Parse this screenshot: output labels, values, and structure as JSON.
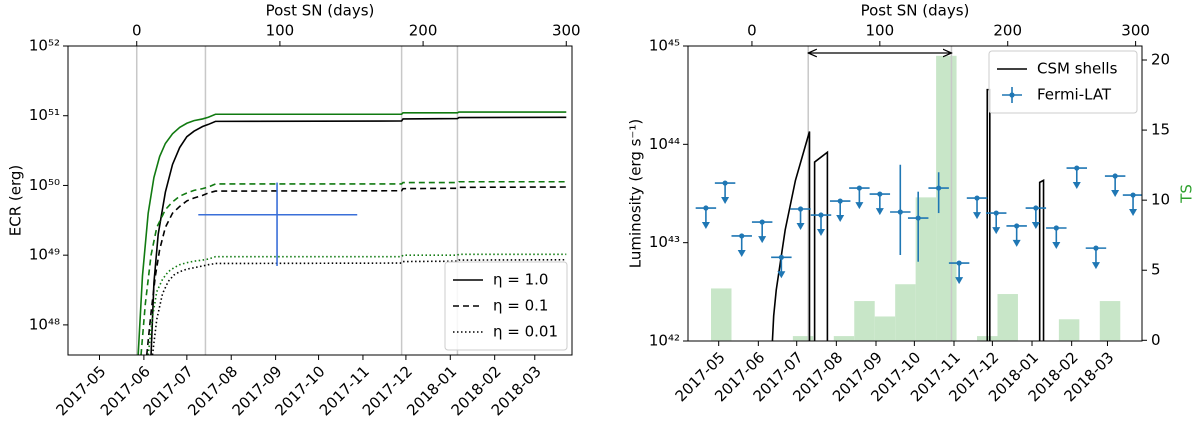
{
  "chart_data": [
    {
      "type": "line",
      "x2label": "Post SN (days)",
      "ylabel": "ECR (erg)",
      "log_y": true,
      "xlim": [
        -48,
        304
      ],
      "ylim": [
        3.7e+47,
        1e+52
      ],
      "xticks": [
        0,
        100,
        200,
        300
      ],
      "date_ticks": [
        {
          "value": -26,
          "label": "2017-05"
        },
        {
          "value": 5,
          "label": "2017-06"
        },
        {
          "value": 35,
          "label": "2017-07"
        },
        {
          "value": 66,
          "label": "2017-08"
        },
        {
          "value": 97,
          "label": "2017-09"
        },
        {
          "value": 127,
          "label": "2017-10"
        },
        {
          "value": 158,
          "label": "2017-11"
        },
        {
          "value": 188,
          "label": "2017-12"
        },
        {
          "value": 219,
          "label": "2018-01"
        },
        {
          "value": 250,
          "label": "2018-02"
        },
        {
          "value": 278,
          "label": "2018-03"
        }
      ],
      "yticks": [
        {
          "value": 1e+48,
          "label": "10⁴⁸"
        },
        {
          "value": 1e+49,
          "label": "10⁴⁹"
        },
        {
          "value": 1e+50,
          "label": "10⁵⁰"
        },
        {
          "value": 1e+51,
          "label": "10⁵¹"
        },
        {
          "value": 1e+52,
          "label": "10⁵²"
        }
      ],
      "vlines": [
        0,
        48,
        185,
        224
      ],
      "legend": "lower right",
      "series": [
        {
          "name": "η = 1.0",
          "color": "#000000",
          "dash": "solid",
          "x": [
            10,
            12,
            15,
            20,
            25,
            30,
            35,
            40,
            46,
            50,
            55,
            185,
            186,
            224,
            225,
            300
          ],
          "values": [
            3.7e+47,
            4e+48,
            2e+49,
            8e+49,
            2e+50,
            3.5e+50,
            5e+50,
            6e+50,
            7e+50,
            7.5e+50,
            8.3e+50,
            8.4e+50,
            9e+50,
            9.1e+50,
            9.4e+50,
            9.5e+50
          ]
        },
        {
          "color": "#117a11",
          "dash": "solid",
          "x": [
            1,
            4,
            8,
            12,
            16,
            20,
            25,
            30,
            35,
            40,
            46,
            50,
            55,
            185,
            186,
            224,
            225,
            300
          ],
          "values": [
            3.7e+47,
            5e+48,
            4e+49,
            1.3e+50,
            2.6e+50,
            4e+50,
            5.5e+50,
            6.8e+50,
            7.8e+50,
            8.5e+50,
            9e+50,
            9.5e+50,
            1.05e+51,
            1.05e+51,
            1.1e+51,
            1.1e+51,
            1.13e+51,
            1.13e+51
          ]
        },
        {
          "name": "η = 0.1",
          "color": "#000000",
          "dash": "dashed",
          "x": [
            7,
            10,
            13,
            16,
            20,
            25,
            30,
            35,
            40,
            46,
            50,
            55,
            185,
            186,
            224,
            225,
            300
          ],
          "values": [
            3.7e+47,
            1.5e+48,
            5e+48,
            1.2e+49,
            2.5e+49,
            4e+49,
            5e+49,
            6e+49,
            6.6e+49,
            7.2e+49,
            7.8e+49,
            8.3e+49,
            8.4e+49,
            9e+49,
            9.1e+49,
            9.4e+49,
            9.5e+49
          ]
        },
        {
          "color": "#117a11",
          "dash": "dashed",
          "x": [
            3,
            6,
            10,
            14,
            20,
            25,
            30,
            35,
            40,
            46,
            50,
            55,
            185,
            186,
            224,
            225,
            300
          ],
          "values": [
            3.7e+47,
            2e+48,
            1e+49,
            2.5e+49,
            4.5e+49,
            5.8e+49,
            7e+49,
            7.8e+49,
            8.5e+49,
            9e+49,
            9.5e+49,
            1.05e+50,
            1.05e+50,
            1.1e+50,
            1.1e+50,
            1.13e+50,
            1.13e+50
          ]
        },
        {
          "name": "η = 0.01",
          "color": "#000000",
          "dash": "dotted",
          "x": [
            11,
            14,
            18,
            22,
            26,
            30,
            35,
            40,
            46,
            50,
            55,
            185,
            186,
            224,
            225,
            300
          ],
          "values": [
            3.7e+47,
            1.2e+48,
            2.8e+48,
            4.2e+48,
            5.2e+48,
            5.8e+48,
            6.3e+48,
            6.6e+48,
            7e+48,
            7.3e+48,
            7.6e+48,
            7.7e+48,
            8.1e+48,
            8.2e+48,
            8.5e+48,
            8.6e+48
          ]
        },
        {
          "color": "#117a11",
          "dash": "dotted",
          "x": [
            8,
            11,
            14,
            18,
            22,
            26,
            30,
            35,
            40,
            46,
            50,
            55,
            185,
            186,
            224,
            225,
            300
          ],
          "values": [
            3.7e+47,
            1.3e+48,
            3e+48,
            4.5e+48,
            5.8e+48,
            6.6e+48,
            7.3e+48,
            7.8e+48,
            8.2e+48,
            8.5e+48,
            8.8e+48,
            9.5e+48,
            9.5e+48,
            1e+49,
            1e+49,
            1.03e+49,
            1.03e+49
          ]
        }
      ],
      "cross": {
        "color": "#3a6fd8",
        "x": 98,
        "y": 3.8e+49,
        "xmin": 43,
        "xmax": 154,
        "ymin": 7e+48,
        "ymax": 1.1e+50
      }
    },
    {
      "type": "line",
      "x2label": "Post SN (days)",
      "ylabel": "Luminosity (erg s⁻¹)",
      "y2label": "TS",
      "y2color": "#2ca02c",
      "log_y": true,
      "xlim": [
        -50,
        305
      ],
      "ylim": [
        1e+42,
        1e+45
      ],
      "y2lim": [
        -0.05,
        21
      ],
      "xticks": [
        0,
        100,
        200,
        300
      ],
      "date_ticks": [
        {
          "value": -26,
          "label": "2017-05"
        },
        {
          "value": 5,
          "label": "2017-06"
        },
        {
          "value": 35,
          "label": "2017-07"
        },
        {
          "value": 66,
          "label": "2017-08"
        },
        {
          "value": 97,
          "label": "2017-09"
        },
        {
          "value": 127,
          "label": "2017-10"
        },
        {
          "value": 158,
          "label": "2017-11"
        },
        {
          "value": 188,
          "label": "2017-12"
        },
        {
          "value": 219,
          "label": "2018-01"
        },
        {
          "value": 250,
          "label": "2018-02"
        },
        {
          "value": 278,
          "label": "2018-03"
        }
      ],
      "yticks": [
        {
          "value": 1e+42,
          "label": "10⁴²"
        },
        {
          "value": 1e+43,
          "label": "10⁴³"
        },
        {
          "value": 1e+44,
          "label": "10⁴⁴"
        },
        {
          "value": 1e+45,
          "label": "10⁴⁵"
        }
      ],
      "y2ticks": [
        0,
        5,
        10,
        15,
        20
      ],
      "vlines": [
        44,
        156
      ],
      "span_arrow": true,
      "legend": "upper right",
      "ts_hist": {
        "color": "#c8e6c8",
        "bins": [
          -32,
          -16,
          0,
          16,
          32,
          48,
          64,
          80,
          96,
          112,
          128,
          144,
          160,
          176,
          192,
          208,
          224,
          240,
          256,
          272,
          288
        ],
        "counts": [
          3.7,
          0,
          0,
          0,
          0.3,
          0,
          0.3,
          2.8,
          1.7,
          4,
          10.2,
          20.3,
          0,
          0.3,
          3.3,
          0,
          0,
          1.5,
          0,
          2.8
        ]
      },
      "series": [
        {
          "name": "CSM shells",
          "color": "#000000",
          "dash": "solid",
          "x": [
            16,
            17,
            19,
            26,
            34,
            45,
            45,
            null,
            49,
            49,
            59,
            59,
            null,
            184,
            184,
            186,
            186,
            null,
            225,
            225,
            228,
            228
          ],
          "values": [
            1e+42,
            1.8e+42,
            3.3e+42,
            1.35e+43,
            4.3e+43,
            1.35e+44,
            1e+42,
            null,
            1e+42,
            6.6e+43,
            8.3e+43,
            1e+42,
            null,
            1e+42,
            3.6e+44,
            3.6e+44,
            1e+42,
            null,
            1e+42,
            4.1e+43,
            4.3e+43,
            1e+42
          ]
        }
      ],
      "errorbars": {
        "name": "Fermi-LAT",
        "color": "#1f77b4",
        "xerr": 8,
        "x": [
          -36,
          -21,
          -8,
          8,
          23,
          38,
          54,
          69,
          84,
          100,
          116,
          130,
          146,
          162,
          176,
          191,
          207,
          222,
          238,
          254,
          269,
          284,
          298
        ],
        "values": [
          2.25e+43,
          4.04e+43,
          1.17e+43,
          1.62e+43,
          7.1e+42,
          2.2e+43,
          1.91e+43,
          2.65e+43,
          3.59e+43,
          3.12e+43,
          2.05e+43,
          1.78e+43,
          3.59e+43,
          6.2e+42,
          2.84e+43,
          2e+43,
          1.48e+43,
          2.25e+43,
          1.41e+43,
          5.74e+43,
          8.8e+42,
          4.76e+43,
          3.05e+43
        ],
        "upper_limit": [
          true,
          true,
          true,
          true,
          true,
          true,
          true,
          true,
          true,
          true,
          false,
          false,
          false,
          true,
          true,
          true,
          true,
          true,
          true,
          true,
          true,
          true,
          true
        ],
        "ylow": [
          null,
          null,
          null,
          null,
          null,
          null,
          null,
          null,
          null,
          null,
          7.5e+42,
          6.4e+42,
          2e+43,
          null,
          null,
          null,
          null,
          null,
          null,
          null,
          null,
          null,
          null
        ],
        "yhigh": [
          null,
          null,
          null,
          null,
          null,
          null,
          null,
          null,
          null,
          null,
          6.2e+43,
          3.3e+43,
          5.2e+43,
          null,
          null,
          null,
          null,
          null,
          null,
          null,
          null,
          null,
          null
        ]
      }
    }
  ]
}
